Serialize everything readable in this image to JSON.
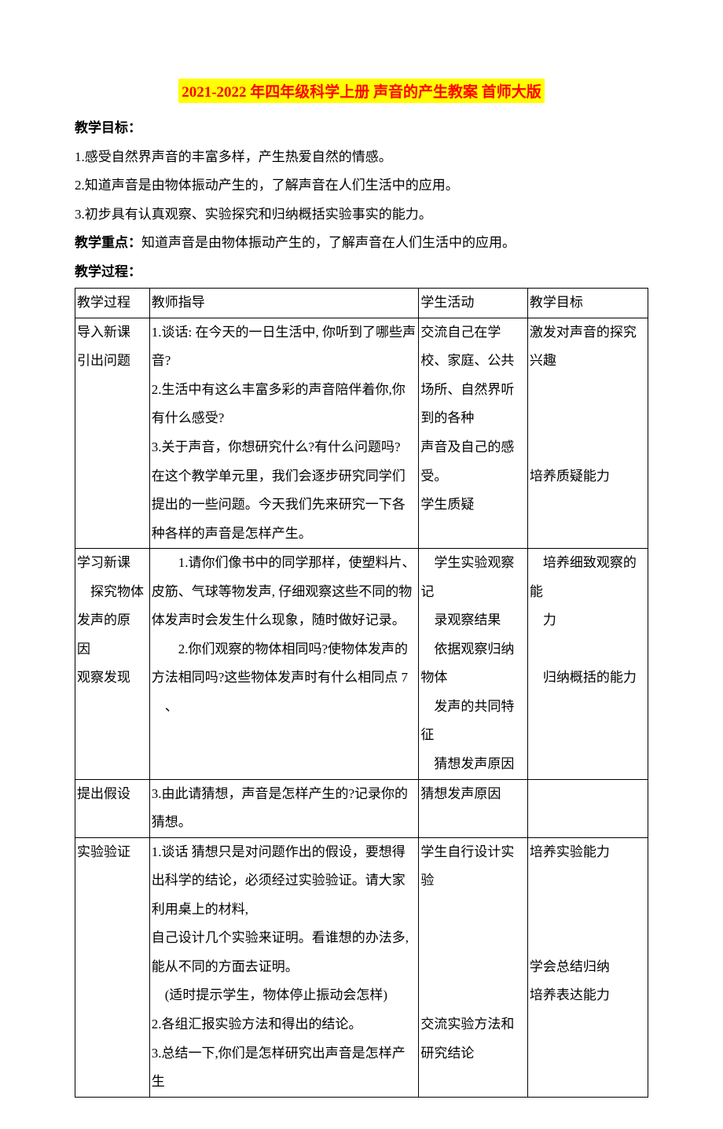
{
  "title": "2021-2022 年四年级科学上册 声音的产生教案 首师大版",
  "sections": {
    "objectives_label": "教学目标：",
    "objectives": [
      "1.感受自然界声音的丰富多样，产生热爱自然的情感。",
      "2.知道声音是由物体振动产生的，了解声音在人们生活中的应用。",
      "3.初步具有认真观察、实验探究和归纳概括实验事实的能力。"
    ],
    "keypoint_label": "教学重点：",
    "keypoint_text": "知道声音是由物体振动产生的，了解声音在人们生活中的应用。",
    "process_label": "教学过程："
  },
  "table": {
    "headers": [
      "教学过程",
      "教师指导",
      "学生活动",
      "教学目标"
    ],
    "rows": [
      {
        "c1": "导入新课\n引出问题",
        "c2": "1.谈话: 在今天的一日生活中, 你听到了哪些声音?\n2.生活中有这么丰富多彩的声音陪伴着你,你有什么感受?\n3.关于声音，你想研究什么?有什么问题吗?\n 在这个教学单元里，我们会逐步研究同学们提出的一些问题。今天我们先来研究一下各种各样的声音是怎样产生。",
        "c3": "交流自己在学校、家庭、公共场所、自然界听到的各种\n声音及自己的感受。\n学生质疑",
        "c4": "激发对声音的探究兴趣\n\n\n\n培养质疑能力"
      },
      {
        "c1": "学习新课\n　探究物体发声的原\n因\n观察发现",
        "c2": "　　1.请你们像书中的同学那样，使塑料片、皮筋、气球等物发声, 仔细观察这些不同的物体发声时会发生什么现象，随时做好记录。\n　　2.你们观察的物体相同吗?使物体发声的方法相同吗?这些物体发声时有什么相同点 7 　、",
        "c3": "　学生实验观察记\n　录观察结果\n　依据观察归纳物体\n　发声的共同特征\n　猜想发声原因",
        "c4": "　培养细致观察的能\n　力\n\n　归纳概括的能力"
      },
      {
        "c1": "提出假设",
        "c2": "3.由此请猜想，声音是怎样产生的?记录你的猜想。",
        "c3": "猜想发声原因",
        "c4": ""
      },
      {
        "c1": "实验验证",
        "c2": "1.谈话 猜想只是对问题作出的假设，要想得出科学的结论，必须经过实验验证。请大家利用桌上的材料,\n自己设计几个实验来证明。看谁想的办法多, 能从不同的方面去证明。\n　(适时提示学生，物体停止振动会怎样)\n2.各组汇报实验方法和得出的结论。\n3.总结一下,你们是怎样研究出声音是怎样产生",
        "c3": "学生自行设计实验\n\n\n\n\n交流实验方法和研究结论",
        "c4": "培养实验能力\n\n\n\n学会总结归纳\n培养表达能力"
      }
    ]
  },
  "colors": {
    "title_color": "#ff0000",
    "title_bg": "#ffff00",
    "text_color": "#000000",
    "border_color": "#000000",
    "background": "#ffffff"
  },
  "typography": {
    "title_fontsize": 19,
    "body_fontsize": 17,
    "line_height": 2.15,
    "font_family": "SimSun"
  }
}
